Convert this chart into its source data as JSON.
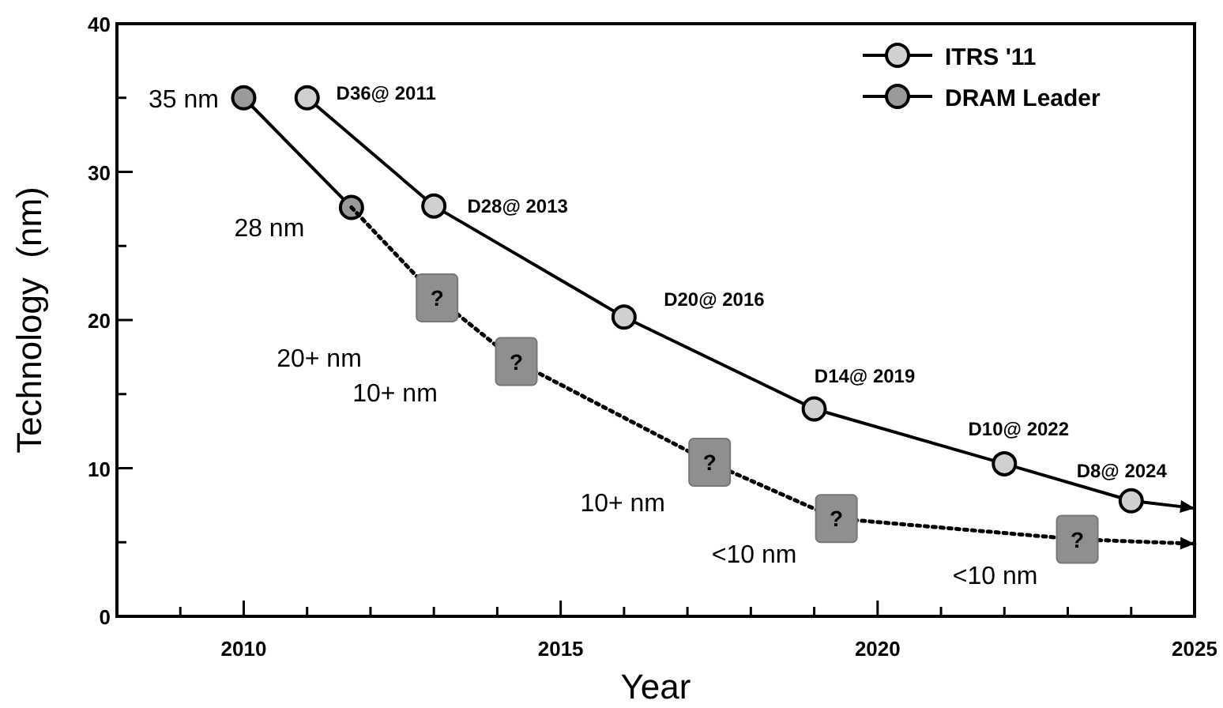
{
  "chart_data": {
    "type": "line",
    "xlabel": "Year",
    "ylabel": "Technology  (nm)",
    "xlim": [
      2008,
      2025
    ],
    "ylim": [
      0,
      40
    ],
    "xticks": [
      {
        "value": 2009,
        "label": null
      },
      2010,
      {
        "value": 2011,
        "label": null
      },
      {
        "value": 2012,
        "label": null
      },
      {
        "value": 2013,
        "label": null
      },
      {
        "value": 2014,
        "label": null
      },
      2015,
      {
        "value": 2016,
        "label": null
      },
      {
        "value": 2017,
        "label": null
      },
      {
        "value": 2018,
        "label": null
      },
      {
        "value": 2019,
        "label": null
      },
      2020,
      {
        "value": 2021,
        "label": null
      },
      {
        "value": 2022,
        "label": null
      },
      {
        "value": 2023,
        "label": null
      },
      {
        "value": 2024,
        "label": null
      },
      2025
    ],
    "yticks": [
      0,
      {
        "value": 5,
        "label": null
      },
      10,
      {
        "value": 15,
        "label": null
      },
      20,
      {
        "value": 25,
        "label": null
      },
      30,
      {
        "value": 35,
        "label": null
      },
      40
    ],
    "grid": false,
    "legend": "top right",
    "series": [
      {
        "name": "ITRS '11",
        "color": "#d0d0d0",
        "marker": "circle",
        "line_style": "solid",
        "x": [
          2011,
          2013,
          2016,
          2019,
          2022,
          2024,
          2025
        ],
        "values": [
          35,
          27.7,
          20.2,
          14,
          10.3,
          7.8,
          7.3
        ]
      },
      {
        "name": "DRAM Leader",
        "color": "#9a9a9a",
        "marker": "circle",
        "line_style": "solid",
        "x": [
          2010,
          2011.7
        ],
        "values": [
          35,
          27.6
        ]
      },
      {
        "color": "#8f8f8f",
        "marker": "square",
        "line_style": "dotted",
        "x": [
          2011.7,
          2013.05,
          2014.3,
          2017.35,
          2019.35,
          2023.15,
          2025
        ],
        "values": [
          27.6,
          21.5,
          17.2,
          10.4,
          6.6,
          5.2,
          4.9
        ]
      }
    ],
    "annotations": [
      {
        "text": "35 nm",
        "x": 2010,
        "y": 35
      },
      {
        "text": "28 nm",
        "x": 2011.7,
        "y": 27.6
      },
      "20+ nm",
      "10+ nm",
      {
        "text": "10+ nm",
        "x": 2017.35,
        "y": 10.4
      },
      {
        "text": "<10 nm",
        "x": 2019.35,
        "y": 6.6
      },
      {
        "text": "<10 nm",
        "x": 2023.15,
        "y": 5.2
      },
      {
        "text": "D36@ 2011",
        "x": 2011,
        "y": 35
      },
      {
        "text": "D28@ 2013",
        "x": 2013,
        "y": 27.7
      },
      {
        "text": "D20@ 2016",
        "x": 2016,
        "y": 20.2
      },
      {
        "text": "D14@ 2019",
        "x": 2019,
        "y": 14
      },
      {
        "text": "D10@ 2022",
        "x": 2022,
        "y": 10.3
      },
      {
        "text": "D8@ 2024",
        "x": 2024,
        "y": 7.8
      },
      {
        "text": "?",
        "x": 2013.05,
        "y": 21.5
      },
      {
        "text": "?",
        "x": 2014.3,
        "y": 17.2
      },
      {
        "text": "?",
        "x": 2017.35,
        "y": 10.4
      },
      {
        "text": "?",
        "x": 2019.35,
        "y": 6.6
      },
      {
        "text": "?",
        "x": 2023.15,
        "y": 5.2
      }
    ]
  }
}
